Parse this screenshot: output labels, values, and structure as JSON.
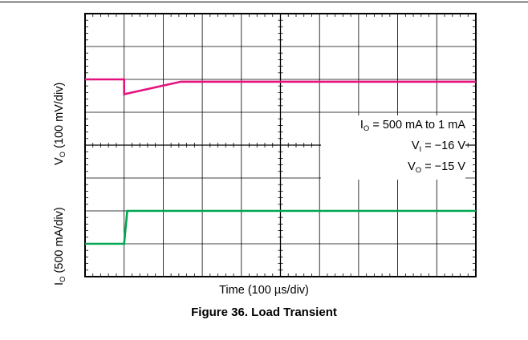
{
  "chart_data": {
    "type": "line",
    "title": "",
    "caption": "Figure 36. Load Transient",
    "xlabel": "Time (100 µs/div)",
    "x_divisions": 10,
    "panels": [
      {
        "ylabel_main": "V",
        "ylabel_sub": "O",
        "ylabel_rest": " (100 mV/div)",
        "y_divisions": 4,
        "series": [
          {
            "color": "#e5127d",
            "x": [
              0,
              1.0,
              1.0,
              2.45,
              10
            ],
            "y": [
              0.0,
              0.0,
              -0.45,
              -0.07,
              -0.07
            ]
          }
        ]
      },
      {
        "ylabel_main": "I",
        "ylabel_sub": "O",
        "ylabel_rest": " (500 mA/div)",
        "y_divisions": 4,
        "series": [
          {
            "color": "#00a651",
            "x": [
              0,
              1.0,
              1.08,
              10
            ],
            "y": [
              0.0,
              0.0,
              1.0,
              1.0
            ]
          }
        ]
      }
    ],
    "annotations": {
      "line1_main": "I",
      "line1_sub": "O",
      "line1_rest": " = 500 mA to 1 mA",
      "line2_main": "V",
      "line2_sub": "I",
      "line2_rest": " = −16 V",
      "line3_main": "V",
      "line3_sub": "O",
      "line3_rest": " = −15 V"
    }
  }
}
